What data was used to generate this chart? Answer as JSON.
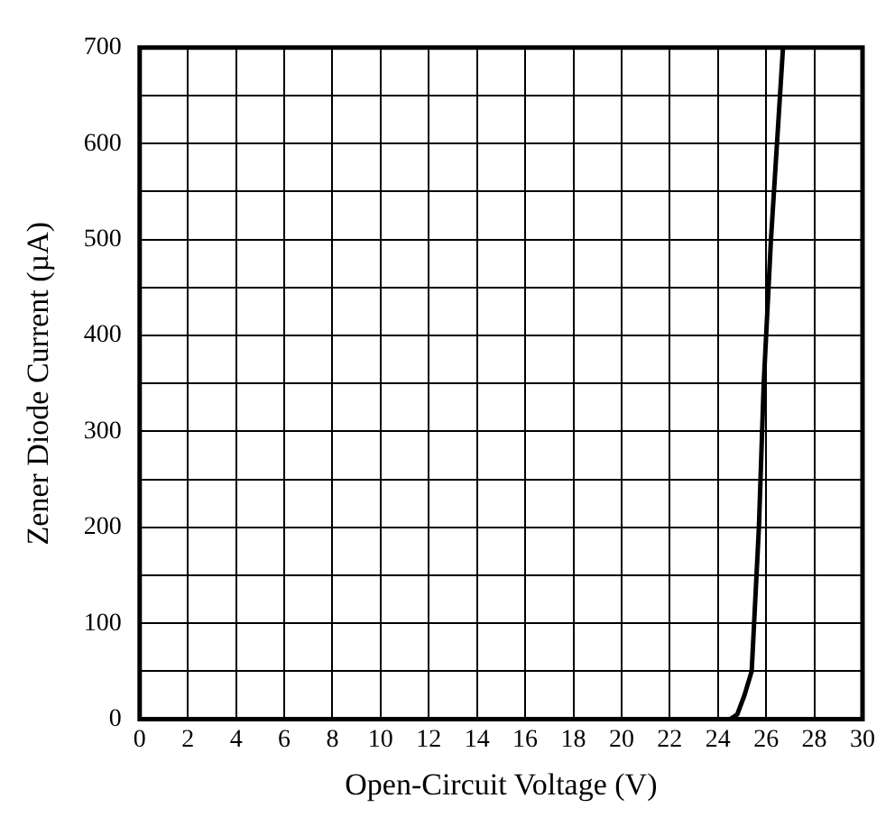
{
  "chart_data": {
    "type": "line",
    "xlabel": "Open-Circuit Voltage (V)",
    "ylabel": "Zener Diode Current (µA)",
    "x": [
      0,
      24,
      24.5,
      24.8,
      25.1,
      25.4,
      25.7,
      25.9,
      26.2,
      26.5,
      26.7
    ],
    "series": [
      {
        "color": "#000000",
        "values": [
          0,
          0,
          0,
          5,
          25,
          50,
          200,
          350,
          500,
          620,
          700
        ]
      }
    ],
    "xlim": [
      0,
      30
    ],
    "xticks": [
      0,
      2,
      4,
      6,
      8,
      10,
      12,
      14,
      16,
      18,
      20,
      22,
      24,
      26,
      28,
      30
    ],
    "ylim": [
      0,
      700
    ],
    "yticks": [
      0,
      {
        "value": 50,
        "label": null
      },
      100,
      {
        "value": 150,
        "label": null
      },
      200,
      {
        "value": 250,
        "label": null
      },
      300,
      {
        "value": 350,
        "label": null
      },
      400,
      {
        "value": 450,
        "label": null
      },
      500,
      {
        "value": 550,
        "label": null
      },
      600,
      {
        "value": 650,
        "label": null
      },
      700
    ],
    "grid": true,
    "legend": false,
    "marker": "none",
    "line_style": "solid"
  }
}
